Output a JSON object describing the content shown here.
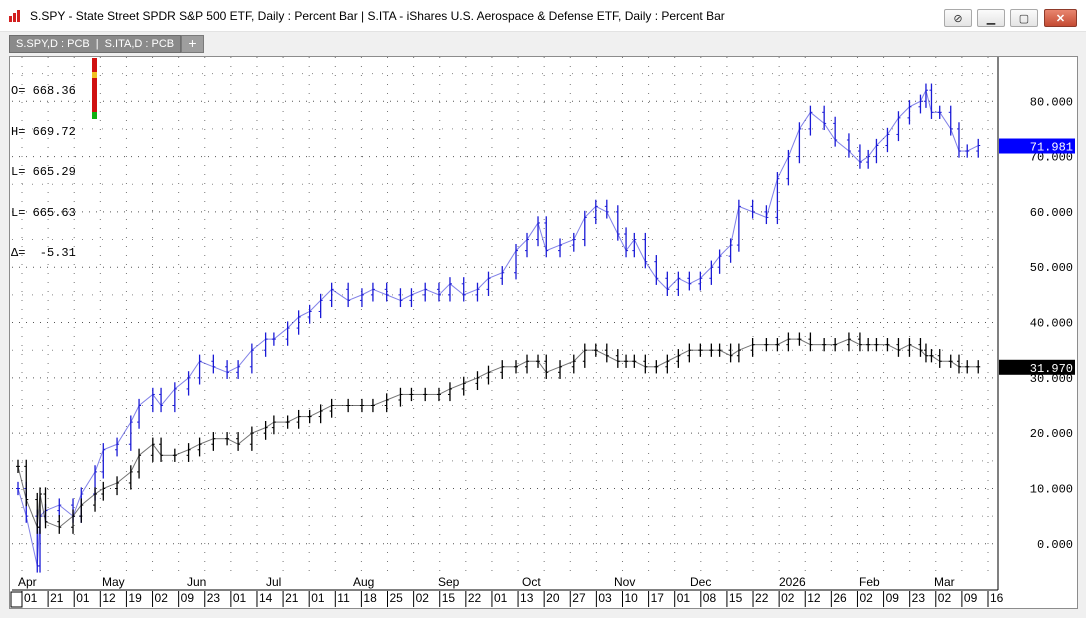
{
  "window": {
    "title": "S.SPY - State Street SPDR S&P 500 ETF, Daily : Percent Bar   |   S.ITA - iShares U.S. Aerospace & Defense ETF, Daily : Percent Bar"
  },
  "tabs": [
    {
      "label": "S.SPY,D : PCB"
    },
    {
      "label": "S.ITA,D : PCB"
    }
  ],
  "add_tab_label": "+",
  "ohlc_readout": {
    "open": "O= 668.36",
    "high": "H= 669.72",
    "low1": "L= 665.29",
    "low2": "L= 665.63",
    "delta": "Δ=  -5.31"
  },
  "colors": {
    "ita_series": "#1a1ad6",
    "spy_series": "#000000",
    "ita_price_box": "#0000ff",
    "spy_price_box": "#000000",
    "gridline": "#555555"
  },
  "chart_data": {
    "type": "line",
    "ylim": [
      -6,
      88
    ],
    "yticks": [
      0,
      10,
      20,
      30,
      40,
      50,
      60,
      70,
      80
    ],
    "ytick_labels": [
      "0.000",
      "10.000",
      "20.000",
      "30.000",
      "40.000",
      "50.000",
      "60.000",
      "70.000",
      "80.000"
    ],
    "month_labels": [
      "Apr",
      "May",
      "Jun",
      "Jul",
      "Aug",
      "Sep",
      "Oct",
      "Nov",
      "Dec",
      "2026",
      "Feb",
      "Mar"
    ],
    "day_labels": [
      "01",
      "21",
      "01",
      "12",
      "19",
      "02",
      "09",
      "23",
      "01",
      "14",
      "21",
      "01",
      "11",
      "18",
      "25",
      "02",
      "15",
      "22",
      "01",
      "13",
      "20",
      "27",
      "03",
      "10",
      "17",
      "01",
      "08",
      "15",
      "22",
      "02",
      "12",
      "26",
      "02",
      "09",
      "23",
      "02",
      "09",
      "16"
    ],
    "x_start": "2025-04-01",
    "x_end": "2026-03-16",
    "last_values": {
      "ita": "71.981",
      "spy": "31.970"
    },
    "grid": true,
    "series": [
      {
        "key": "ita",
        "points": [
          [
            "2025-04-01",
            10
          ],
          [
            "2025-04-04",
            5
          ],
          [
            "2025-04-08",
            -4
          ],
          [
            "2025-04-09",
            5
          ],
          [
            "2025-04-11",
            6
          ],
          [
            "2025-04-16",
            7
          ],
          [
            "2025-04-21",
            5
          ],
          [
            "2025-04-24",
            9
          ],
          [
            "2025-04-29",
            13
          ],
          [
            "2025-05-02",
            17
          ],
          [
            "2025-05-07",
            18
          ],
          [
            "2025-05-12",
            22
          ],
          [
            "2025-05-15",
            25
          ],
          [
            "2025-05-20",
            27
          ],
          [
            "2025-05-23",
            25
          ],
          [
            "2025-05-28",
            28
          ],
          [
            "2025-06-02",
            30
          ],
          [
            "2025-06-06",
            33
          ],
          [
            "2025-06-11",
            32
          ],
          [
            "2025-06-16",
            31
          ],
          [
            "2025-06-20",
            32
          ],
          [
            "2025-06-25",
            35
          ],
          [
            "2025-06-30",
            37
          ],
          [
            "2025-07-03",
            37
          ],
          [
            "2025-07-08",
            39
          ],
          [
            "2025-07-12",
            41
          ],
          [
            "2025-07-16",
            42
          ],
          [
            "2025-07-20",
            44
          ],
          [
            "2025-07-24",
            46
          ],
          [
            "2025-07-30",
            44
          ],
          [
            "2025-08-04",
            45
          ],
          [
            "2025-08-08",
            46
          ],
          [
            "2025-08-13",
            45
          ],
          [
            "2025-08-18",
            44
          ],
          [
            "2025-08-22",
            45
          ],
          [
            "2025-08-27",
            46
          ],
          [
            "2025-09-01",
            45
          ],
          [
            "2025-09-05",
            47
          ],
          [
            "2025-09-10",
            45
          ],
          [
            "2025-09-15",
            46
          ],
          [
            "2025-09-19",
            48
          ],
          [
            "2025-09-24",
            49
          ],
          [
            "2025-09-29",
            53
          ],
          [
            "2025-10-03",
            55
          ],
          [
            "2025-10-07",
            58
          ],
          [
            "2025-10-10",
            53
          ],
          [
            "2025-10-15",
            54
          ],
          [
            "2025-10-20",
            55
          ],
          [
            "2025-10-24",
            59
          ],
          [
            "2025-10-28",
            61
          ],
          [
            "2025-11-01",
            60
          ],
          [
            "2025-11-05",
            56
          ],
          [
            "2025-11-08",
            53
          ],
          [
            "2025-11-11",
            55
          ],
          [
            "2025-11-15",
            51
          ],
          [
            "2025-11-19",
            48
          ],
          [
            "2025-11-23",
            46
          ],
          [
            "2025-11-27",
            48
          ],
          [
            "2025-12-01",
            47
          ],
          [
            "2025-12-05",
            48
          ],
          [
            "2025-12-09",
            50
          ],
          [
            "2025-12-12",
            52
          ],
          [
            "2025-12-16",
            54
          ],
          [
            "2025-12-19",
            61
          ],
          [
            "2025-12-24",
            60
          ],
          [
            "2025-12-29",
            59
          ],
          [
            "2026-01-02",
            66
          ],
          [
            "2026-01-06",
            70
          ],
          [
            "2026-01-10",
            75
          ],
          [
            "2026-01-14",
            78
          ],
          [
            "2026-01-19",
            76
          ],
          [
            "2026-01-23",
            73
          ],
          [
            "2026-01-28",
            71
          ],
          [
            "2026-02-01",
            69
          ],
          [
            "2026-02-04",
            70
          ],
          [
            "2026-02-07",
            72
          ],
          [
            "2026-02-11",
            74
          ],
          [
            "2026-02-15",
            77
          ],
          [
            "2026-02-19",
            79
          ],
          [
            "2026-02-23",
            80
          ],
          [
            "2026-02-25",
            82
          ],
          [
            "2026-02-27",
            78
          ],
          [
            "2026-03-02",
            78
          ],
          [
            "2026-03-06",
            75
          ],
          [
            "2026-03-09",
            71
          ],
          [
            "2026-03-12",
            71
          ],
          [
            "2026-03-16",
            72
          ]
        ]
      },
      {
        "key": "spy",
        "points": [
          [
            "2025-04-01",
            14
          ],
          [
            "2025-04-04",
            8
          ],
          [
            "2025-04-08",
            3
          ],
          [
            "2025-04-09",
            9
          ],
          [
            "2025-04-11",
            4
          ],
          [
            "2025-04-16",
            3
          ],
          [
            "2025-04-21",
            5
          ],
          [
            "2025-04-24",
            7
          ],
          [
            "2025-04-29",
            9
          ],
          [
            "2025-05-02",
            10
          ],
          [
            "2025-05-07",
            11
          ],
          [
            "2025-05-12",
            13
          ],
          [
            "2025-05-15",
            16
          ],
          [
            "2025-05-20",
            18
          ],
          [
            "2025-05-23",
            16
          ],
          [
            "2025-05-28",
            16
          ],
          [
            "2025-06-02",
            17
          ],
          [
            "2025-06-06",
            18
          ],
          [
            "2025-06-11",
            19
          ],
          [
            "2025-06-16",
            19
          ],
          [
            "2025-06-20",
            18
          ],
          [
            "2025-06-25",
            20
          ],
          [
            "2025-06-30",
            21
          ],
          [
            "2025-07-03",
            22
          ],
          [
            "2025-07-08",
            22
          ],
          [
            "2025-07-12",
            23
          ],
          [
            "2025-07-16",
            23
          ],
          [
            "2025-07-20",
            24
          ],
          [
            "2025-07-24",
            25
          ],
          [
            "2025-07-30",
            25
          ],
          [
            "2025-08-04",
            25
          ],
          [
            "2025-08-08",
            25
          ],
          [
            "2025-08-13",
            26
          ],
          [
            "2025-08-18",
            27
          ],
          [
            "2025-08-22",
            27
          ],
          [
            "2025-08-27",
            27
          ],
          [
            "2025-09-01",
            27
          ],
          [
            "2025-09-05",
            28
          ],
          [
            "2025-09-10",
            29
          ],
          [
            "2025-09-15",
            30
          ],
          [
            "2025-09-19",
            31
          ],
          [
            "2025-09-24",
            32
          ],
          [
            "2025-09-29",
            32
          ],
          [
            "2025-10-03",
            33
          ],
          [
            "2025-10-07",
            33
          ],
          [
            "2025-10-10",
            31
          ],
          [
            "2025-10-15",
            32
          ],
          [
            "2025-10-20",
            33
          ],
          [
            "2025-10-24",
            35
          ],
          [
            "2025-10-28",
            35
          ],
          [
            "2025-11-01",
            34
          ],
          [
            "2025-11-05",
            33
          ],
          [
            "2025-11-08",
            33
          ],
          [
            "2025-11-11",
            33
          ],
          [
            "2025-11-15",
            32
          ],
          [
            "2025-11-19",
            32
          ],
          [
            "2025-11-23",
            33
          ],
          [
            "2025-11-27",
            34
          ],
          [
            "2025-12-01",
            35
          ],
          [
            "2025-12-05",
            35
          ],
          [
            "2025-12-09",
            35
          ],
          [
            "2025-12-12",
            35
          ],
          [
            "2025-12-16",
            34
          ],
          [
            "2025-12-19",
            35
          ],
          [
            "2025-12-24",
            36
          ],
          [
            "2025-12-29",
            36
          ],
          [
            "2026-01-02",
            36
          ],
          [
            "2026-01-06",
            37
          ],
          [
            "2026-01-10",
            37
          ],
          [
            "2026-01-14",
            36
          ],
          [
            "2026-01-19",
            36
          ],
          [
            "2026-01-23",
            36
          ],
          [
            "2026-01-28",
            37
          ],
          [
            "2026-02-01",
            36
          ],
          [
            "2026-02-04",
            36
          ],
          [
            "2026-02-07",
            36
          ],
          [
            "2026-02-11",
            36
          ],
          [
            "2026-02-15",
            35
          ],
          [
            "2026-02-19",
            36
          ],
          [
            "2026-02-23",
            35
          ],
          [
            "2026-02-25",
            34
          ],
          [
            "2026-02-27",
            34
          ],
          [
            "2026-03-02",
            33
          ],
          [
            "2026-03-06",
            33
          ],
          [
            "2026-03-09",
            32
          ],
          [
            "2026-03-12",
            32
          ],
          [
            "2026-03-16",
            32
          ]
        ]
      }
    ]
  }
}
